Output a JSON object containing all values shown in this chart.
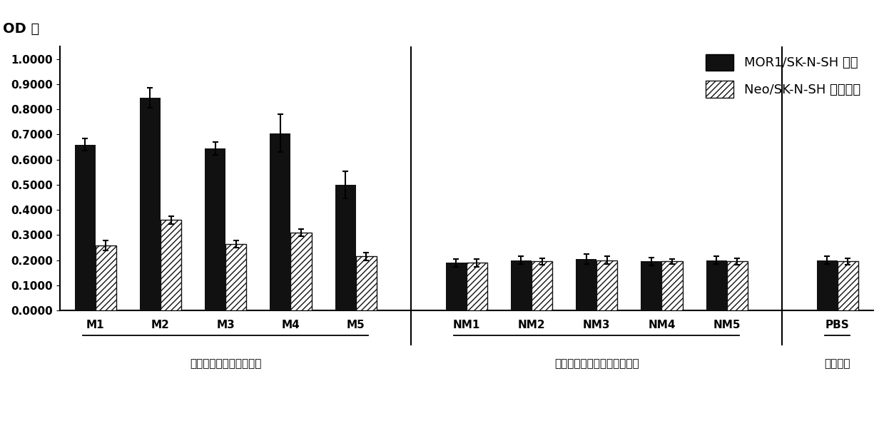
{
  "groups": [
    "M1",
    "M2",
    "M3",
    "M4",
    "M5",
    "NM1",
    "NM2",
    "NM3",
    "NM4",
    "NM5",
    "PBS"
  ],
  "mor_values": [
    0.66,
    0.845,
    0.645,
    0.705,
    0.5,
    0.19,
    0.2,
    0.205,
    0.195,
    0.2,
    0.2
  ],
  "neo_values": [
    0.26,
    0.36,
    0.265,
    0.31,
    0.215,
    0.19,
    0.195,
    0.2,
    0.195,
    0.195,
    0.195
  ],
  "mor_errors": [
    0.025,
    0.04,
    0.025,
    0.075,
    0.055,
    0.015,
    0.015,
    0.02,
    0.015,
    0.015,
    0.015
  ],
  "neo_errors": [
    0.02,
    0.015,
    0.015,
    0.015,
    0.015,
    0.015,
    0.012,
    0.015,
    0.01,
    0.012,
    0.012
  ],
  "group1_label": "咐啊吸食人员的毛发样本",
  "group2_label": "无吸食史的正常人的毛发样本",
  "group3_label": "空白对照",
  "ylabel_text": "OD 値",
  "legend1": "MOR1/SK-N-SH 细胞",
  "legend2": "Neo/SK-N-SH 对照细胞",
  "ylim": [
    0,
    1.05
  ],
  "yticks": [
    0.0,
    0.1,
    0.2,
    0.3,
    0.4,
    0.5,
    0.6,
    0.7,
    0.8,
    0.9,
    1.0
  ],
  "ytick_labels": [
    "0.0000",
    "0.1000",
    "0.2000",
    "0.3000",
    "0.4000",
    "0.5000",
    "0.6000",
    "0.7000",
    "0.8000",
    "0.9000",
    "1.0000"
  ],
  "bar_color_mor": "#111111",
  "background_color": "#ffffff",
  "fig_width": 12.39,
  "fig_height": 6.11
}
